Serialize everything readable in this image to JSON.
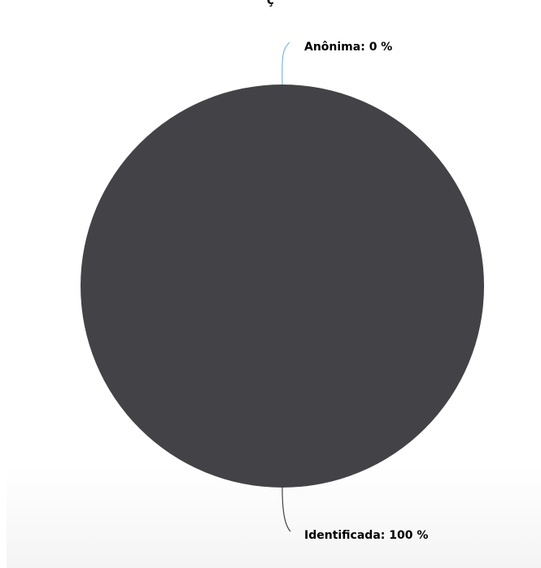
{
  "chart_data": {
    "type": "pie",
    "title": "ç",
    "slices": [
      {
        "label": "Anônima",
        "value": 0,
        "display": "Anônima: 0 %"
      },
      {
        "label": "Identificada",
        "value": 100,
        "display": "Identificada: 100 %"
      }
    ]
  },
  "colors": {
    "identificada": "#434246",
    "anonima": "#7cb5ec",
    "identificada_connector": "#434246"
  }
}
